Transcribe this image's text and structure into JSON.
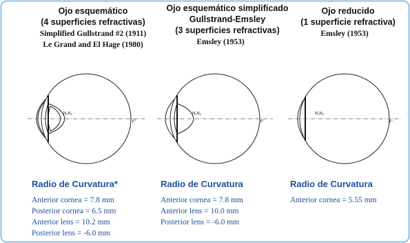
{
  "columns": [
    {
      "title_lines": [
        "Ojo esquemático",
        "(4 superficies refractivas)"
      ],
      "references": [
        "Simplified Gullstrand #2 (1911)",
        "Le Grand and El Hage (1980)"
      ],
      "eye": {
        "nodal_label": "N₁N₂",
        "focal_label": "F'"
      },
      "heading": "Radio de Curvatura*",
      "measurements": [
        "Anterior cornea = 7.8 mm",
        "Posterior cornea = 6.5 mm",
        "Anterior lens = 10.2 mm",
        "Posterior lens = -6.0 mm"
      ]
    },
    {
      "title_lines": [
        "Ojo esquemático simplificado",
        "Gullstrand-Emsley",
        "(3 superficies refractivas)"
      ],
      "references": [
        "Emsley (1953)"
      ],
      "eye": {
        "nodal_label": "N₁N₂",
        "focal_label": "F'"
      },
      "heading": "Radio de Curvatura",
      "measurements": [
        "Anterior cornea = 7.8 mm",
        "Anterior lens = 10.0 mm",
        "Posterior lens = -6.0 mm"
      ]
    },
    {
      "title_lines": [
        "Ojo reducido",
        "(1 superficie refractiva)"
      ],
      "references": [
        "Emsley (1953)"
      ],
      "eye": {
        "nodal_label": "N₁N₂",
        "focal_label": "F'"
      },
      "heading": "Radio de Curvatura",
      "measurements": [
        "Anterior cornea = 5.55 mm"
      ]
    }
  ]
}
